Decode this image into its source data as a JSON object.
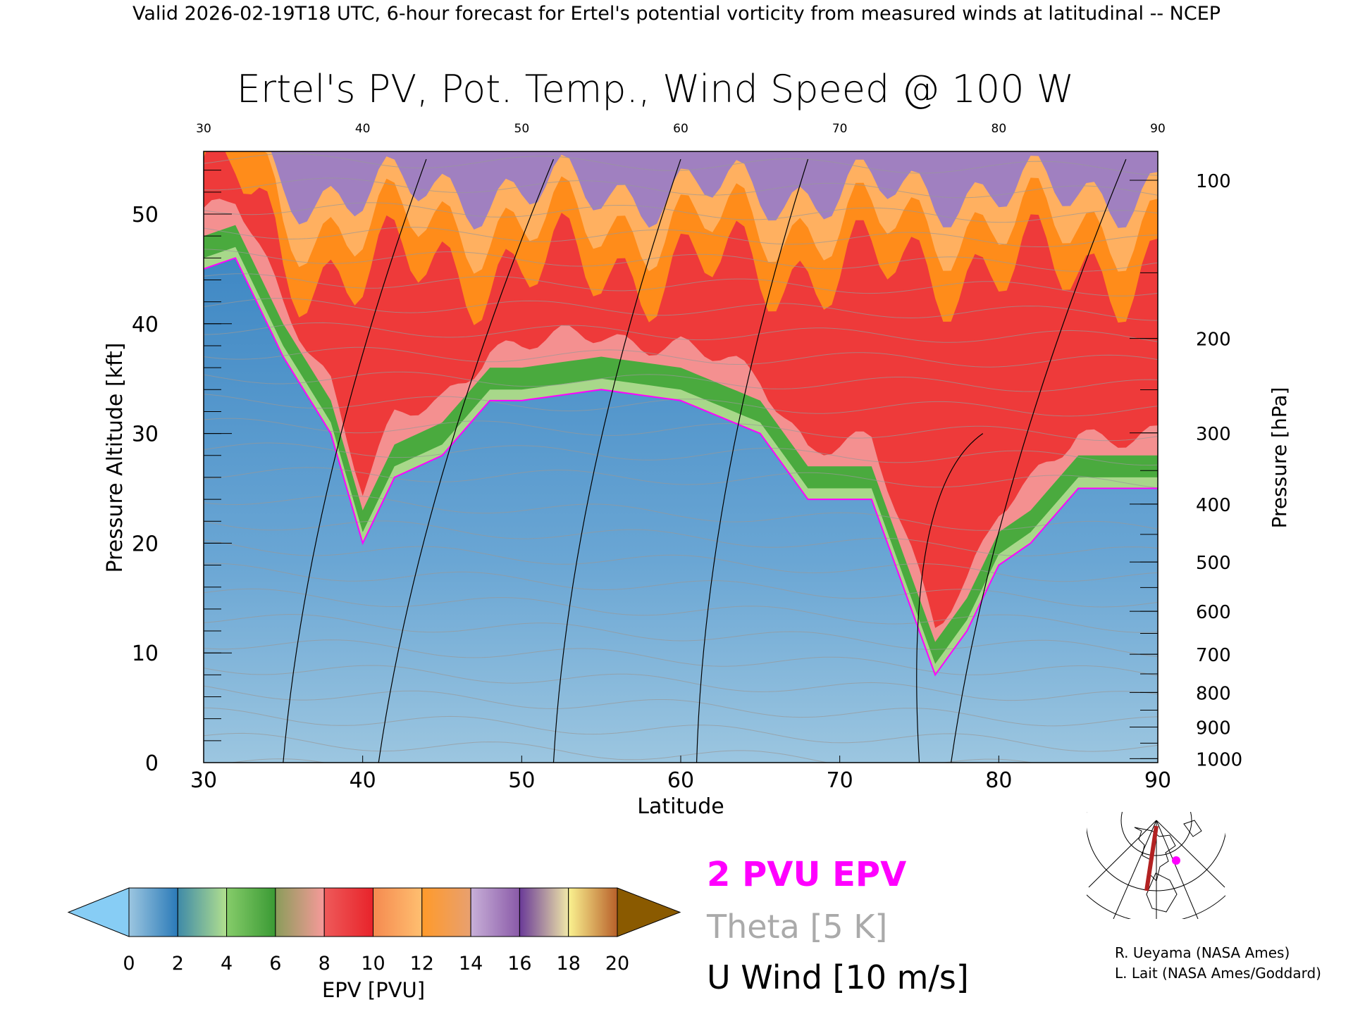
{
  "header": {
    "valid_line": "Valid 2026-02-19T18 UTC, 6-hour forecast for Ertel's potential vorticity from measured winds at latitudinal -- NCEP",
    "title": "Ertel's PV, Pot. Temp., Wind Speed @ 100 W"
  },
  "chart_data": {
    "type": "heatmap",
    "title": "Ertel's PV, Pot. Temp., Wind Speed @ 100 W",
    "xlabel": "Latitude",
    "ylabel": "Pressure Altitude [kft]",
    "y2label": "Pressure [hPa]",
    "xlim": [
      30,
      90
    ],
    "ylim": [
      0,
      55.7
    ],
    "xticks": [
      "30",
      "40",
      "50",
      "60",
      "70",
      "80",
      "90"
    ],
    "top_xticks": [
      "30",
      "40",
      "50",
      "60",
      "70",
      "80",
      "90"
    ],
    "yticks": [
      "0",
      "10",
      "20",
      "30",
      "40",
      "50"
    ],
    "pressure_ticks": [
      "100",
      "200",
      "300",
      "400",
      "500",
      "600",
      "700",
      "800",
      "900",
      "1000"
    ],
    "tropopause_2pvu": {
      "name": "2 PVU EPV height (kft)",
      "lat": [
        30,
        32,
        35,
        38,
        40,
        42,
        45,
        48,
        50,
        55,
        60,
        65,
        68,
        70,
        72,
        75,
        76,
        78,
        80,
        82,
        85,
        88,
        90
      ],
      "kft": [
        45,
        46,
        37,
        30,
        20,
        26,
        28,
        33,
        33,
        34,
        33,
        30,
        24,
        24,
        24,
        12,
        8,
        12,
        18,
        20,
        25,
        25,
        25
      ]
    },
    "colorbar": {
      "label": "EPV [PVU]",
      "ticks": [
        "0",
        "2",
        "4",
        "6",
        "8",
        "10",
        "12",
        "14",
        "16",
        "18",
        "20"
      ],
      "segments": [
        [
          "#9cc6e0",
          "#2a7ab8"
        ],
        [
          "#3f8aa8",
          "#b2e08e"
        ],
        [
          "#86cc6a",
          "#3a9a34"
        ],
        [
          "#8a9c5a",
          "#f79a9a"
        ],
        [
          "#ee5a5a",
          "#e8232a"
        ],
        [
          "#f58a50",
          "#ffbf70"
        ],
        [
          "#ff9a2a",
          "#e8a070"
        ],
        [
          "#c8b0d8",
          "#8a5aa8"
        ],
        [
          "#6a3a98",
          "#f0e8a8"
        ],
        [
          "#faf290",
          "#b8602a"
        ]
      ],
      "under_color": "#87cdf5",
      "over_color": "#8a5a00"
    }
  },
  "legend": {
    "pv": "2 PVU EPV",
    "theta": "Theta [5 K]",
    "wind": "U Wind [10 m/s]",
    "pv_color": "#ff00ff",
    "theta_color": "#aaaaaa"
  },
  "credits": {
    "line1": "R. Ueyama (NASA Ames)",
    "line2": "L. Lait (NASA Ames/Goddard)"
  },
  "map": {
    "track_color": "#b22222",
    "marker_color": "#ff00ff"
  }
}
